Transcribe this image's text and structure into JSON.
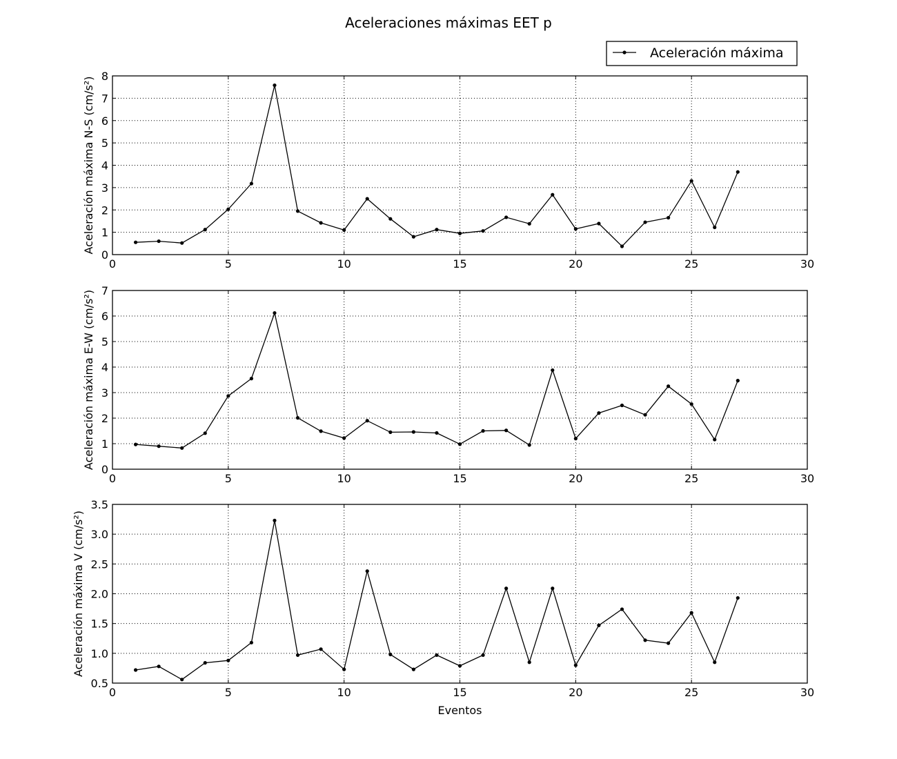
{
  "figure": {
    "title": "Aceleraciones máximas EET p",
    "legend": {
      "label": "Aceleración máxima",
      "placement": "top-right"
    }
  },
  "chart_data": [
    {
      "type": "line",
      "xlabel": "",
      "ylabel": "Aceleración máxima N-S (cm/s²)",
      "xlim": [
        0,
        30
      ],
      "ylim": [
        0,
        8
      ],
      "xticks": [
        "0",
        "5",
        "10",
        "15",
        "20",
        "25",
        "30"
      ],
      "yticks": [
        "0",
        "1",
        "2",
        "3",
        "4",
        "5",
        "6",
        "7",
        "8"
      ],
      "grid": true,
      "series": [
        {
          "name": "Aceleración máxima",
          "color": "#000000",
          "x": [
            1,
            2,
            3,
            4,
            5,
            6,
            7,
            8,
            9,
            10,
            11,
            12,
            13,
            14,
            15,
            16,
            17,
            18,
            19,
            20,
            21,
            22,
            23,
            24,
            25,
            26,
            27
          ],
          "y": [
            0.55,
            0.6,
            0.52,
            1.12,
            2.03,
            3.18,
            7.58,
            1.95,
            1.42,
            1.1,
            2.5,
            1.6,
            0.8,
            1.12,
            0.95,
            1.06,
            1.67,
            1.38,
            2.68,
            1.15,
            1.39,
            0.37,
            1.45,
            1.65,
            3.3,
            1.22,
            3.7
          ]
        }
      ]
    },
    {
      "type": "line",
      "xlabel": "",
      "ylabel": "Aceleración máxima E-W (cm/s²)",
      "xlim": [
        0,
        30
      ],
      "ylim": [
        0,
        7
      ],
      "xticks": [
        "0",
        "5",
        "10",
        "15",
        "20",
        "25",
        "30"
      ],
      "yticks": [
        "0",
        "1",
        "2",
        "3",
        "4",
        "5",
        "6",
        "7"
      ],
      "grid": true,
      "series": [
        {
          "name": "Aceleración máxima",
          "color": "#000000",
          "x": [
            1,
            2,
            3,
            4,
            5,
            6,
            7,
            8,
            9,
            10,
            11,
            12,
            13,
            14,
            15,
            16,
            17,
            18,
            19,
            20,
            21,
            22,
            23,
            24,
            25,
            26,
            27
          ],
          "y": [
            0.97,
            0.9,
            0.83,
            1.41,
            2.87,
            3.55,
            6.12,
            2.01,
            1.49,
            1.22,
            1.9,
            1.45,
            1.46,
            1.42,
            0.98,
            1.5,
            1.52,
            0.95,
            3.88,
            1.2,
            2.2,
            2.5,
            2.13,
            3.25,
            2.55,
            1.16,
            3.47
          ]
        }
      ]
    },
    {
      "type": "line",
      "xlabel": "Eventos",
      "ylabel": "Aceleración máxima V (cm/s²)",
      "xlim": [
        0,
        30
      ],
      "ylim": [
        0.5,
        3.5
      ],
      "xticks": [
        "0",
        "5",
        "10",
        "15",
        "20",
        "25",
        "30"
      ],
      "yticks": [
        "0.5",
        "1.0",
        "1.5",
        "2.0",
        "2.5",
        "3.0",
        "3.5"
      ],
      "grid": true,
      "series": [
        {
          "name": "Aceleración máxima",
          "color": "#000000",
          "x": [
            1,
            2,
            3,
            4,
            5,
            6,
            7,
            8,
            9,
            10,
            11,
            12,
            13,
            14,
            15,
            16,
            17,
            18,
            19,
            20,
            21,
            22,
            23,
            24,
            25,
            26,
            27
          ],
          "y": [
            0.72,
            0.78,
            0.56,
            0.84,
            0.88,
            1.18,
            3.23,
            0.97,
            1.07,
            0.73,
            2.38,
            0.98,
            0.73,
            0.97,
            0.79,
            0.97,
            2.09,
            0.85,
            2.09,
            0.8,
            1.47,
            1.74,
            1.22,
            1.17,
            1.68,
            0.85,
            1.93
          ]
        }
      ]
    }
  ]
}
